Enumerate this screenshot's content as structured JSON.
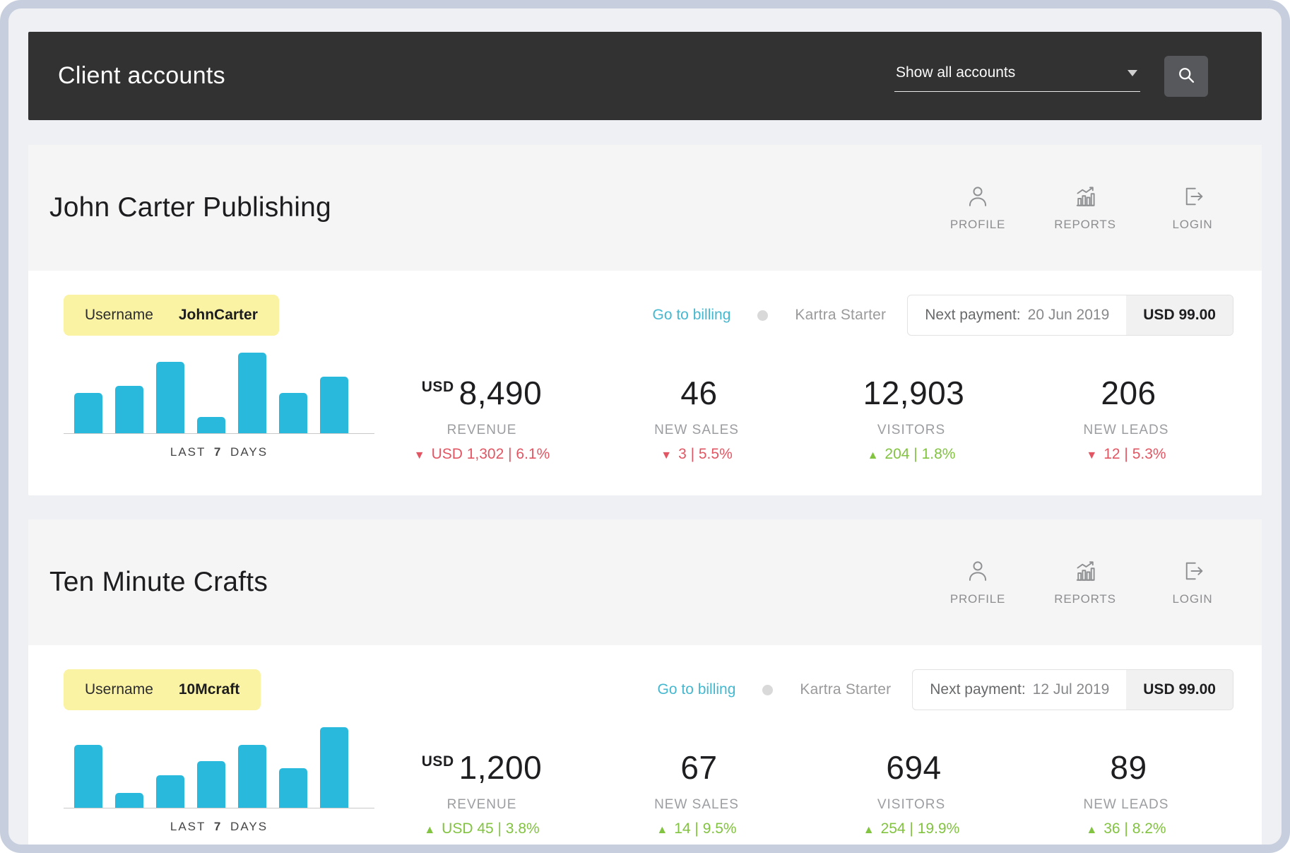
{
  "header": {
    "title": "Client accounts",
    "filter_value": "Show all accounts"
  },
  "icons": {
    "search-icon": "magnifier",
    "dropdown-caret-icon": "triangle-down",
    "profile-icon": "person-outline",
    "reports-icon": "bar-chart-with-trend",
    "login-icon": "exit-arrow",
    "separator-dot-icon": "circle",
    "delta-up-icon": "▲",
    "delta-down-icon": "▼"
  },
  "colors": {
    "topbar_bg": "#323232",
    "frame": "#c7cfde",
    "bar_cyan": "#29b9dc",
    "badge_yellow": "#faf3a4",
    "link_teal": "#45b8d0",
    "delta_red": "#e25663",
    "delta_green": "#82c341"
  },
  "accounts": [
    {
      "name": "John Carter Publishing",
      "actions": {
        "profile": "PROFILE",
        "reports": "REPORTS",
        "login": "LOGIN"
      },
      "username_label": "Username",
      "username": "JohnCarter",
      "billing_link": "Go to billing",
      "plan": "Kartra Starter",
      "payment": {
        "label": "Next payment:",
        "date": "20 Jun 2019",
        "amount": "USD 99.00"
      },
      "chart": {
        "caption_prefix": "LAST",
        "caption_day_count": "7",
        "caption_suffix": "DAYS",
        "values": [
          50,
          59,
          89,
          20,
          100,
          50,
          70
        ]
      },
      "metrics": [
        {
          "currency": "USD",
          "value": "8,490",
          "label": "REVENUE",
          "arrow": "▼",
          "direction": "down",
          "delta": "USD 1,302 | 6.1%"
        },
        {
          "value": "46",
          "label": "NEW SALES",
          "arrow": "▼",
          "direction": "down",
          "delta": "3 | 5.5%"
        },
        {
          "value": "12,903",
          "label": "VISITORS",
          "arrow": "▲",
          "direction": "up",
          "delta": "204 | 1.8%"
        },
        {
          "value": "206",
          "label": "NEW LEADS",
          "arrow": "▼",
          "direction": "down",
          "delta": "12 | 5.3%"
        }
      ]
    },
    {
      "name": "Ten Minute Crafts",
      "actions": {
        "profile": "PROFILE",
        "reports": "REPORTS",
        "login": "LOGIN"
      },
      "username_label": "Username",
      "username": "10Mcraft",
      "billing_link": "Go to billing",
      "plan": "Kartra Starter",
      "payment": {
        "label": "Next payment:",
        "date": "12 Jul 2019",
        "amount": "USD 99.00"
      },
      "chart": {
        "caption_prefix": "LAST",
        "caption_day_count": "7",
        "caption_suffix": "DAYS",
        "values": [
          78,
          18,
          40,
          58,
          78,
          49,
          100
        ]
      },
      "metrics": [
        {
          "currency": "USD",
          "value": "1,200",
          "label": "REVENUE",
          "arrow": "▲",
          "direction": "up",
          "delta": "USD 45 | 3.8%"
        },
        {
          "value": "67",
          "label": "NEW SALES",
          "arrow": "▲",
          "direction": "up",
          "delta": "14 | 9.5%"
        },
        {
          "value": "694",
          "label": "VISITORS",
          "arrow": "▲",
          "direction": "up",
          "delta": "254 | 19.9%"
        },
        {
          "value": "89",
          "label": "NEW LEADS",
          "arrow": "▲",
          "direction": "up",
          "delta": "36 | 8.2%"
        }
      ]
    }
  ]
}
